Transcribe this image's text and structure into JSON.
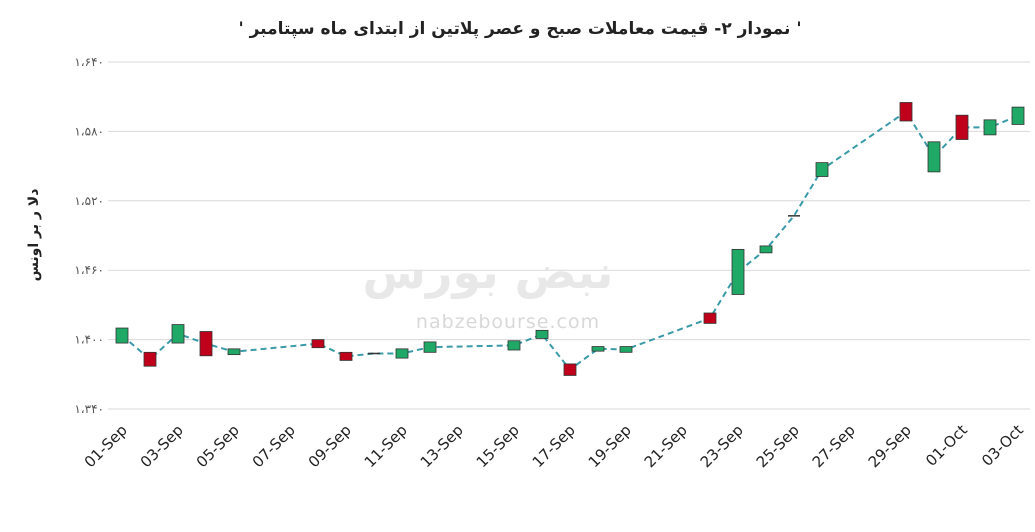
{
  "chart_data": {
    "type": "candlestick",
    "title": "' نمودار ۲- قیمت معاملات صبح و عصر پلاتین از ابتدای ماه سپتامبر '",
    "y_label": "دلا ر بر اونس",
    "watermark": "نبض بورس",
    "watermark_url": "nabzebourse.com",
    "categories": [
      "01-Sep",
      null,
      "03-Sep",
      null,
      "05-Sep",
      null,
      "07-Sep",
      null,
      "09-Sep",
      null,
      "11-Sep",
      null,
      "13-Sep",
      null,
      "15-Sep",
      null,
      "17-Sep",
      null,
      "19-Sep",
      null,
      "21-Sep",
      null,
      "23-Sep",
      null,
      "25-Sep",
      null,
      "27-Sep",
      null,
      "29-Sep",
      null,
      "01-Oct",
      null,
      "03-Oct"
    ],
    "open": [
      1397,
      1389,
      1397,
      1407,
      1387,
      null,
      null,
      1400,
      1389,
      1388,
      1384,
      1389,
      null,
      null,
      1391,
      1401,
      1379,
      1390,
      1389,
      null,
      null,
      1423,
      1439,
      1475,
      1507,
      1541,
      null,
      null,
      1605,
      1545,
      1594,
      1577,
      1586
    ],
    "close": [
      1410,
      1377,
      1413,
      1386,
      1392,
      null,
      null,
      1393,
      1382,
      1388,
      1392,
      1398,
      null,
      null,
      1399,
      1408,
      1369,
      1394,
      1394,
      null,
      null,
      1414,
      1478,
      1481,
      1507,
      1553,
      null,
      null,
      1589,
      1571,
      1573,
      1590,
      1601
    ],
    "up_color": "#1fa866",
    "down_color": "#c0001a",
    "line_color": "#3a9aa8",
    "ylim": [
      1340,
      1640
    ],
    "yticks": [
      {
        "value": 1340,
        "label": "۱،۳۴۰"
      },
      {
        "value": 1400,
        "label": "۱،۴۰۰"
      },
      {
        "value": 1460,
        "label": "۱،۴۶۰"
      },
      {
        "value": 1520,
        "label": "۱،۵۲۰"
      },
      {
        "value": 1580,
        "label": "۱،۵۸۰"
      },
      {
        "value": 1640,
        "label": "۱،۶۴۰"
      }
    ],
    "grid": true
  }
}
